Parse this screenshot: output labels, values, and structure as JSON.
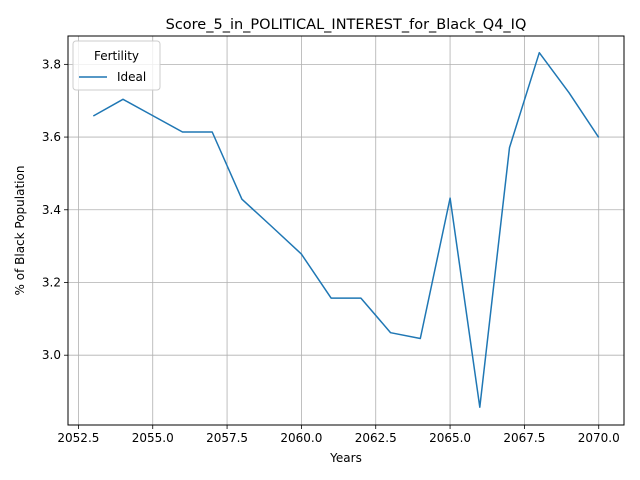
{
  "chart_data": {
    "type": "line",
    "title": "Score_5_in_POLITICAL_INTEREST_for_Black_Q4_IQ",
    "xlabel": "Years",
    "ylabel": "% of Black Population",
    "xlim": [
      2052.15,
      2070.85
    ],
    "ylim": [
      2.808,
      3.878
    ],
    "xticks": [
      2052.5,
      2055.0,
      2057.5,
      2060.0,
      2062.5,
      2065.0,
      2067.5,
      2070.0
    ],
    "xtick_labels": [
      "2052.5",
      "2055.0",
      "2057.5",
      "2060.0",
      "2062.5",
      "2065.0",
      "2067.5",
      "2070.0"
    ],
    "yticks": [
      3.0,
      3.2,
      3.4,
      3.6,
      3.8
    ],
    "ytick_labels": [
      "3.0",
      "3.2",
      "3.4",
      "3.6",
      "3.8"
    ],
    "grid": true,
    "legend": {
      "title": "Fertility",
      "placement": "upper-left"
    },
    "series": [
      {
        "name": "Ideal",
        "color": "#1f77b4",
        "x": [
          2053,
          2054,
          2055,
          2056,
          2057,
          2058,
          2059,
          2060,
          2061,
          2062,
          2063,
          2064,
          2065,
          2066,
          2067,
          2068,
          2069,
          2070
        ],
        "y": [
          3.658,
          3.704,
          3.659,
          3.614,
          3.614,
          3.429,
          3.354,
          3.278,
          3.157,
          3.157,
          3.062,
          3.046,
          3.432,
          2.857,
          3.571,
          3.832,
          3.722,
          3.599
        ]
      }
    ]
  }
}
